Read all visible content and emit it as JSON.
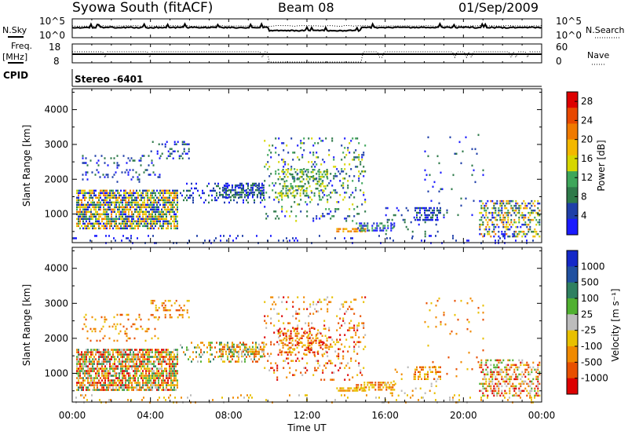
{
  "header": {
    "station": "Syowa South (fitACF)",
    "beam": "Beam 08",
    "date": "01/Sep/2009"
  },
  "strip_panels": {
    "nsky_label": "N.Sky",
    "nsearch_label": "N.Search",
    "freq_label": "Freq.",
    "freq_unit": "[MHz]",
    "nave_label": "Nave",
    "cpid_label": "CPID",
    "cpid_value": "Stereo -6401",
    "noise_left_ticks": [
      "10^5",
      "10^0"
    ],
    "noise_right_ticks": [
      "10^5",
      "10^0"
    ],
    "freq_left_ticks": [
      "18",
      "8"
    ],
    "nave_right_ticks": [
      "60",
      "0"
    ]
  },
  "colors": {
    "power_scale": [
      "#1a1aff",
      "#1f3fa8",
      "#2e7a4a",
      "#3ea65a",
      "#d6d600",
      "#f3b800",
      "#f07a00",
      "#e84800",
      "#dd0000"
    ],
    "velocity_scale": [
      "#1428c8",
      "#2050a0",
      "#2f8060",
      "#50b030",
      "#bcbcbc",
      "#e8c000",
      "#f08a00",
      "#e85000",
      "#dd0000"
    ]
  },
  "chart_data": [
    {
      "type": "heatmap",
      "name": "power",
      "ylabel": "Slant Range [km]",
      "xlabel": "",
      "x_ticks": [
        "00:00",
        "04:00",
        "08:00",
        "12:00",
        "16:00",
        "20:00",
        "00:00"
      ],
      "x_range_hours": [
        0,
        24
      ],
      "y_ticks": [
        1000,
        2000,
        3000,
        4000
      ],
      "y_range_km": [
        180,
        4600
      ],
      "colorbar": {
        "label": "Power [dB]",
        "ticks": [
          4,
          8,
          12,
          16,
          20,
          24,
          28
        ],
        "range": [
          0,
          30
        ]
      },
      "scatter_regions": [
        {
          "t0": 0.2,
          "t1": 5.4,
          "r0": 550,
          "r1": 1700,
          "density": 0.75,
          "c0": 0,
          "c1": 6
        },
        {
          "t0": 0.5,
          "t1": 4.5,
          "r0": 1900,
          "r1": 2700,
          "density": 0.12,
          "c0": 0,
          "c1": 2
        },
        {
          "t0": 4.0,
          "t1": 6.0,
          "r0": 2600,
          "r1": 3100,
          "density": 0.2,
          "c0": 0,
          "c1": 2
        },
        {
          "t0": 5.5,
          "t1": 9.8,
          "r0": 1300,
          "r1": 1900,
          "density": 0.25,
          "c0": 0,
          "c1": 2
        },
        {
          "t0": 7.5,
          "t1": 9.8,
          "r0": 1500,
          "r1": 1850,
          "density": 0.6,
          "c0": 0,
          "c1": 2
        },
        {
          "t0": 9.8,
          "t1": 15.0,
          "r0": 800,
          "r1": 3200,
          "density": 0.13,
          "c0": 0,
          "c1": 4
        },
        {
          "t0": 10.5,
          "t1": 13.0,
          "r0": 1500,
          "r1": 2300,
          "density": 0.35,
          "c0": 2,
          "c1": 4
        },
        {
          "t0": 13.5,
          "t1": 15.0,
          "r0": 480,
          "r1": 600,
          "density": 0.7,
          "c0": 5,
          "c1": 6
        },
        {
          "t0": 14.5,
          "t1": 16.5,
          "r0": 550,
          "r1": 760,
          "density": 0.55,
          "c0": 0,
          "c1": 3
        },
        {
          "t0": 16.0,
          "t1": 18.8,
          "r0": 350,
          "r1": 1200,
          "density": 0.08,
          "c0": 0,
          "c1": 2
        },
        {
          "t0": 17.5,
          "t1": 18.8,
          "r0": 800,
          "r1": 1200,
          "density": 0.4,
          "c0": 0,
          "c1": 2
        },
        {
          "t0": 18.0,
          "t1": 21.0,
          "r0": 800,
          "r1": 3300,
          "density": 0.04,
          "c0": 0,
          "c1": 2
        },
        {
          "t0": 20.8,
          "t1": 23.9,
          "r0": 350,
          "r1": 1400,
          "density": 0.45,
          "c0": 0,
          "c1": 6
        },
        {
          "t0": 0.0,
          "t1": 23.9,
          "r0": 180,
          "r1": 400,
          "density": 0.08,
          "c0": 0,
          "c1": 1
        }
      ]
    },
    {
      "type": "heatmap",
      "name": "velocity",
      "ylabel": "Slant Range [km]",
      "xlabel": "Time UT",
      "x_ticks": [
        "00:00",
        "04:00",
        "08:00",
        "12:00",
        "16:00",
        "20:00",
        "00:00"
      ],
      "x_range_hours": [
        0,
        24
      ],
      "y_ticks": [
        1000,
        2000,
        3000,
        4000
      ],
      "y_range_km": [
        180,
        4600
      ],
      "colorbar": {
        "label": "Velocity [m s⁻¹]",
        "ticks": [
          1000,
          500,
          100,
          25,
          -25,
          -100,
          -500,
          -1000
        ]
      },
      "scatter_regions": [
        {
          "t0": 0.2,
          "t1": 5.4,
          "r0": 550,
          "r1": 1700,
          "density": 0.75,
          "c0": 2,
          "c1": 8
        },
        {
          "t0": 0.5,
          "t1": 4.5,
          "r0": 1900,
          "r1": 2700,
          "density": 0.12,
          "c0": 5,
          "c1": 7
        },
        {
          "t0": 4.0,
          "t1": 6.0,
          "r0": 2600,
          "r1": 3100,
          "density": 0.2,
          "c0": 5,
          "c1": 7
        },
        {
          "t0": 5.5,
          "t1": 9.8,
          "r0": 1300,
          "r1": 1900,
          "density": 0.25,
          "c0": 2,
          "c1": 7
        },
        {
          "t0": 7.5,
          "t1": 9.8,
          "r0": 1500,
          "r1": 1850,
          "density": 0.6,
          "c0": 2,
          "c1": 7
        },
        {
          "t0": 9.8,
          "t1": 15.0,
          "r0": 800,
          "r1": 3200,
          "density": 0.13,
          "c0": 4,
          "c1": 8
        },
        {
          "t0": 10.5,
          "t1": 13.0,
          "r0": 1500,
          "r1": 2300,
          "density": 0.35,
          "c0": 5,
          "c1": 8
        },
        {
          "t0": 13.5,
          "t1": 15.0,
          "r0": 480,
          "r1": 600,
          "density": 0.7,
          "c0": 5,
          "c1": 6
        },
        {
          "t0": 14.5,
          "t1": 16.5,
          "r0": 550,
          "r1": 760,
          "density": 0.55,
          "c0": 5,
          "c1": 7
        },
        {
          "t0": 16.0,
          "t1": 18.8,
          "r0": 350,
          "r1": 1200,
          "density": 0.08,
          "c0": 4,
          "c1": 6
        },
        {
          "t0": 17.5,
          "t1": 18.8,
          "r0": 800,
          "r1": 1200,
          "density": 0.4,
          "c0": 5,
          "c1": 7
        },
        {
          "t0": 18.0,
          "t1": 21.0,
          "r0": 800,
          "r1": 3300,
          "density": 0.04,
          "c0": 5,
          "c1": 7
        },
        {
          "t0": 20.8,
          "t1": 23.9,
          "r0": 350,
          "r1": 1400,
          "density": 0.45,
          "c0": 3,
          "c1": 8
        },
        {
          "t0": 0.0,
          "t1": 23.9,
          "r0": 180,
          "r1": 400,
          "density": 0.08,
          "c0": 4,
          "c1": 6
        }
      ]
    }
  ]
}
